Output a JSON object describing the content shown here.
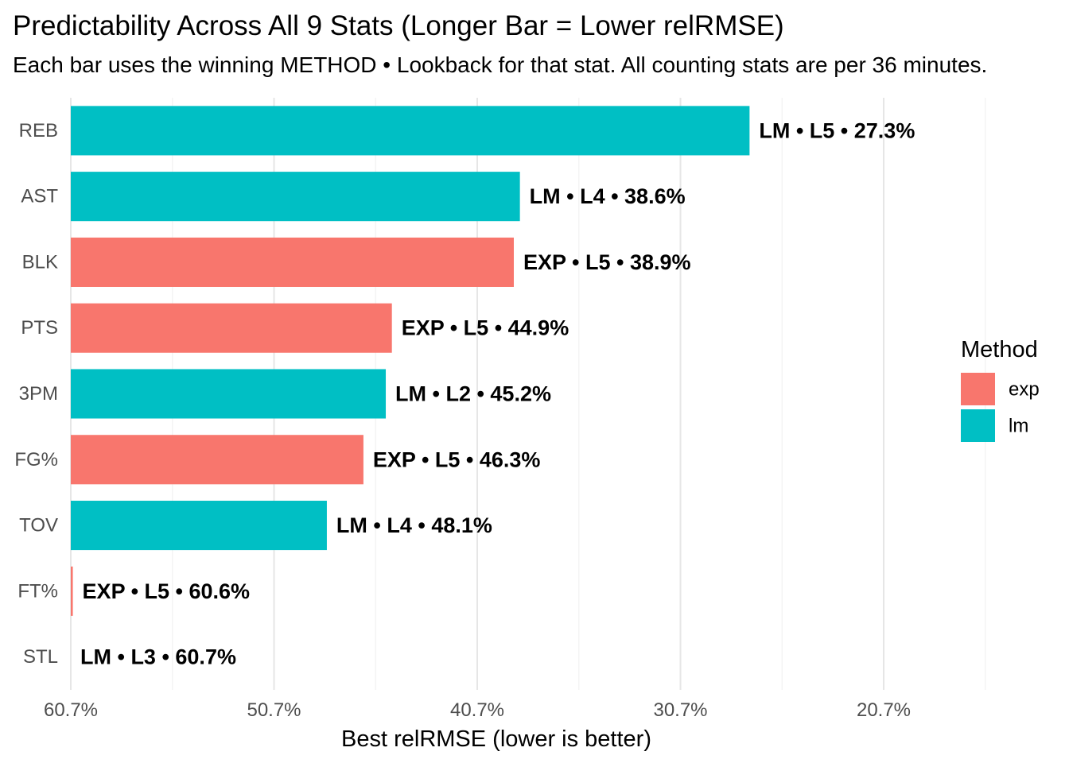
{
  "chart_data": {
    "type": "bar",
    "orientation": "horizontal",
    "title": "Predictability Across All 9 Stats (Longer Bar = Lower relRMSE)",
    "subtitle": "Each bar uses the winning METHOD • Lookback for that stat. All counting stats are per 36 minutes.",
    "xlabel": "Best relRMSE (lower is better)",
    "ylabel": "",
    "x_axis_reversed": true,
    "xlim": [
      60.7,
      14.5
    ],
    "x_ticks": [
      60.7,
      50.7,
      40.7,
      30.7,
      20.7
    ],
    "x_tick_labels": [
      "60.7%",
      "50.7%",
      "40.7%",
      "30.7%",
      "20.7%"
    ],
    "grid": "vertical major and minor",
    "legend": {
      "title": "Method",
      "position": "right",
      "entries": [
        {
          "key": "exp",
          "label": "exp",
          "color": "#F8766D"
        },
        {
          "key": "lm",
          "label": "lm",
          "color": "#00BFC4"
        }
      ]
    },
    "categories": [
      "REB",
      "AST",
      "BLK",
      "PTS",
      "3PM",
      "FG%",
      "TOV",
      "FT%",
      "STL"
    ],
    "bars": [
      {
        "stat": "REB",
        "method": "lm",
        "lookback": "L5",
        "value": 27.3,
        "label": "LM • L5 • 27.3%"
      },
      {
        "stat": "AST",
        "method": "lm",
        "lookback": "L4",
        "value": 38.6,
        "label": "LM • L4 • 38.6%"
      },
      {
        "stat": "BLK",
        "method": "exp",
        "lookback": "L5",
        "value": 38.9,
        "label": "EXP • L5 • 38.9%"
      },
      {
        "stat": "PTS",
        "method": "exp",
        "lookback": "L5",
        "value": 44.9,
        "label": "EXP • L5 • 44.9%"
      },
      {
        "stat": "3PM",
        "method": "lm",
        "lookback": "L2",
        "value": 45.2,
        "label": "LM • L2 • 45.2%"
      },
      {
        "stat": "FG%",
        "method": "exp",
        "lookback": "L5",
        "value": 46.3,
        "label": "EXP • L5 • 46.3%"
      },
      {
        "stat": "TOV",
        "method": "lm",
        "lookback": "L4",
        "value": 48.1,
        "label": "LM • L4 • 48.1%"
      },
      {
        "stat": "FT%",
        "method": "exp",
        "lookback": "L5",
        "value": 60.6,
        "label": "EXP • L5 • 60.6%"
      },
      {
        "stat": "STL",
        "method": "lm",
        "lookback": "L3",
        "value": 60.7,
        "label": "LM • L3 • 60.7%"
      }
    ]
  }
}
